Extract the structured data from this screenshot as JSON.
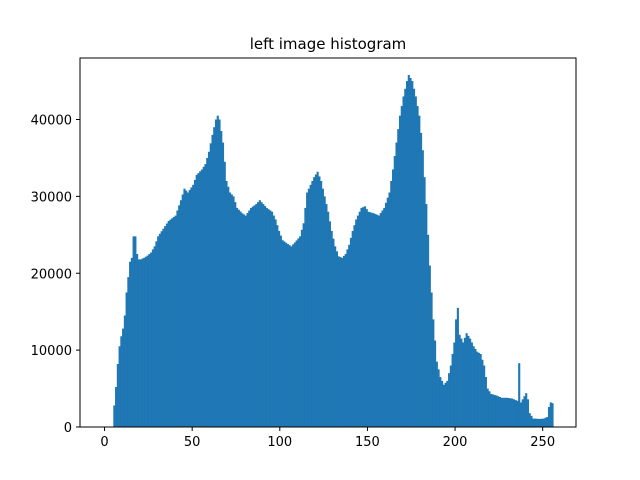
{
  "chart_data": {
    "type": "bar",
    "title": "left image histogram",
    "xlabel": "",
    "ylabel": "",
    "xlim": [
      -14,
      269
    ],
    "ylim": [
      0,
      48000
    ],
    "xticks": [
      0,
      50,
      100,
      150,
      200,
      250
    ],
    "yticks": [
      0,
      10000,
      20000,
      30000,
      40000
    ],
    "grid": false,
    "bar_color": "#1f77b4",
    "anchors": [
      [
        0,
        0
      ],
      [
        4,
        0
      ],
      [
        5,
        2800
      ],
      [
        6,
        5200
      ],
      [
        7,
        8200
      ],
      [
        8,
        10500
      ],
      [
        9,
        11800
      ],
      [
        10,
        12800
      ],
      [
        11,
        14500
      ],
      [
        12,
        17500
      ],
      [
        13,
        19500
      ],
      [
        14,
        21500
      ],
      [
        15,
        22000
      ],
      [
        16,
        24800
      ],
      [
        17,
        24800
      ],
      [
        18,
        22500
      ],
      [
        19,
        21800
      ],
      [
        20,
        21800
      ],
      [
        22,
        22000
      ],
      [
        24,
        22300
      ],
      [
        26,
        22700
      ],
      [
        28,
        23500
      ],
      [
        30,
        24800
      ],
      [
        33,
        25800
      ],
      [
        36,
        26800
      ],
      [
        40,
        27500
      ],
      [
        43,
        29500
      ],
      [
        45,
        31000
      ],
      [
        47,
        30500
      ],
      [
        50,
        31500
      ],
      [
        52,
        32800
      ],
      [
        55,
        33500
      ],
      [
        57,
        34200
      ],
      [
        59,
        35800
      ],
      [
        61,
        38000
      ],
      [
        63,
        40000
      ],
      [
        64,
        40500
      ],
      [
        65,
        40000
      ],
      [
        67,
        37000
      ],
      [
        69,
        32000
      ],
      [
        71,
        30500
      ],
      [
        73,
        30000
      ],
      [
        75,
        28500
      ],
      [
        78,
        27800
      ],
      [
        80,
        27500
      ],
      [
        83,
        28500
      ],
      [
        86,
        29000
      ],
      [
        88,
        29500
      ],
      [
        90,
        29000
      ],
      [
        92,
        28500
      ],
      [
        95,
        28000
      ],
      [
        97,
        27000
      ],
      [
        99,
        25500
      ],
      [
        101,
        24300
      ],
      [
        104,
        23800
      ],
      [
        106,
        23500
      ],
      [
        108,
        24000
      ],
      [
        111,
        24800
      ],
      [
        113,
        26500
      ],
      [
        115,
        30500
      ],
      [
        117,
        31500
      ],
      [
        119,
        32500
      ],
      [
        121,
        33200
      ],
      [
        123,
        32000
      ],
      [
        125,
        30000
      ],
      [
        127,
        28000
      ],
      [
        129,
        25500
      ],
      [
        131,
        23500
      ],
      [
        133,
        22200
      ],
      [
        135,
        22000
      ],
      [
        137,
        22500
      ],
      [
        139,
        23700
      ],
      [
        141,
        25500
      ],
      [
        143,
        27000
      ],
      [
        146,
        28500
      ],
      [
        148,
        28700
      ],
      [
        150,
        28000
      ],
      [
        153,
        27800
      ],
      [
        156,
        27500
      ],
      [
        159,
        28500
      ],
      [
        162,
        30500
      ],
      [
        164,
        33500
      ],
      [
        166,
        37000
      ],
      [
        168,
        40500
      ],
      [
        170,
        43000
      ],
      [
        172,
        45000
      ],
      [
        173,
        45800
      ],
      [
        175,
        45000
      ],
      [
        177,
        43000
      ],
      [
        179,
        40500
      ],
      [
        181,
        36000
      ],
      [
        183,
        29000
      ],
      [
        185,
        21000
      ],
      [
        187,
        14000
      ],
      [
        189,
        8500
      ],
      [
        191,
        6500
      ],
      [
        193,
        5500
      ],
      [
        195,
        6000
      ],
      [
        197,
        8000
      ],
      [
        199,
        11000
      ],
      [
        200,
        14000
      ],
      [
        201,
        15500
      ],
      [
        202,
        12000
      ],
      [
        204,
        11000
      ],
      [
        206,
        12200
      ],
      [
        208,
        11500
      ],
      [
        210,
        10500
      ],
      [
        212,
        9800
      ],
      [
        214,
        9500
      ],
      [
        216,
        8000
      ],
      [
        218,
        5000
      ],
      [
        220,
        4300
      ],
      [
        223,
        4100
      ],
      [
        226,
        3800
      ],
      [
        229,
        3800
      ],
      [
        232,
        3700
      ],
      [
        235,
        3400
      ],
      [
        236,
        8300
      ],
      [
        237,
        3200
      ],
      [
        240,
        4400
      ],
      [
        241,
        3600
      ],
      [
        242,
        1800
      ],
      [
        244,
        1100
      ],
      [
        248,
        1050
      ],
      [
        250,
        1100
      ],
      [
        252,
        1300
      ],
      [
        253,
        2600
      ],
      [
        254,
        3200
      ],
      [
        255,
        3100
      ]
    ]
  }
}
